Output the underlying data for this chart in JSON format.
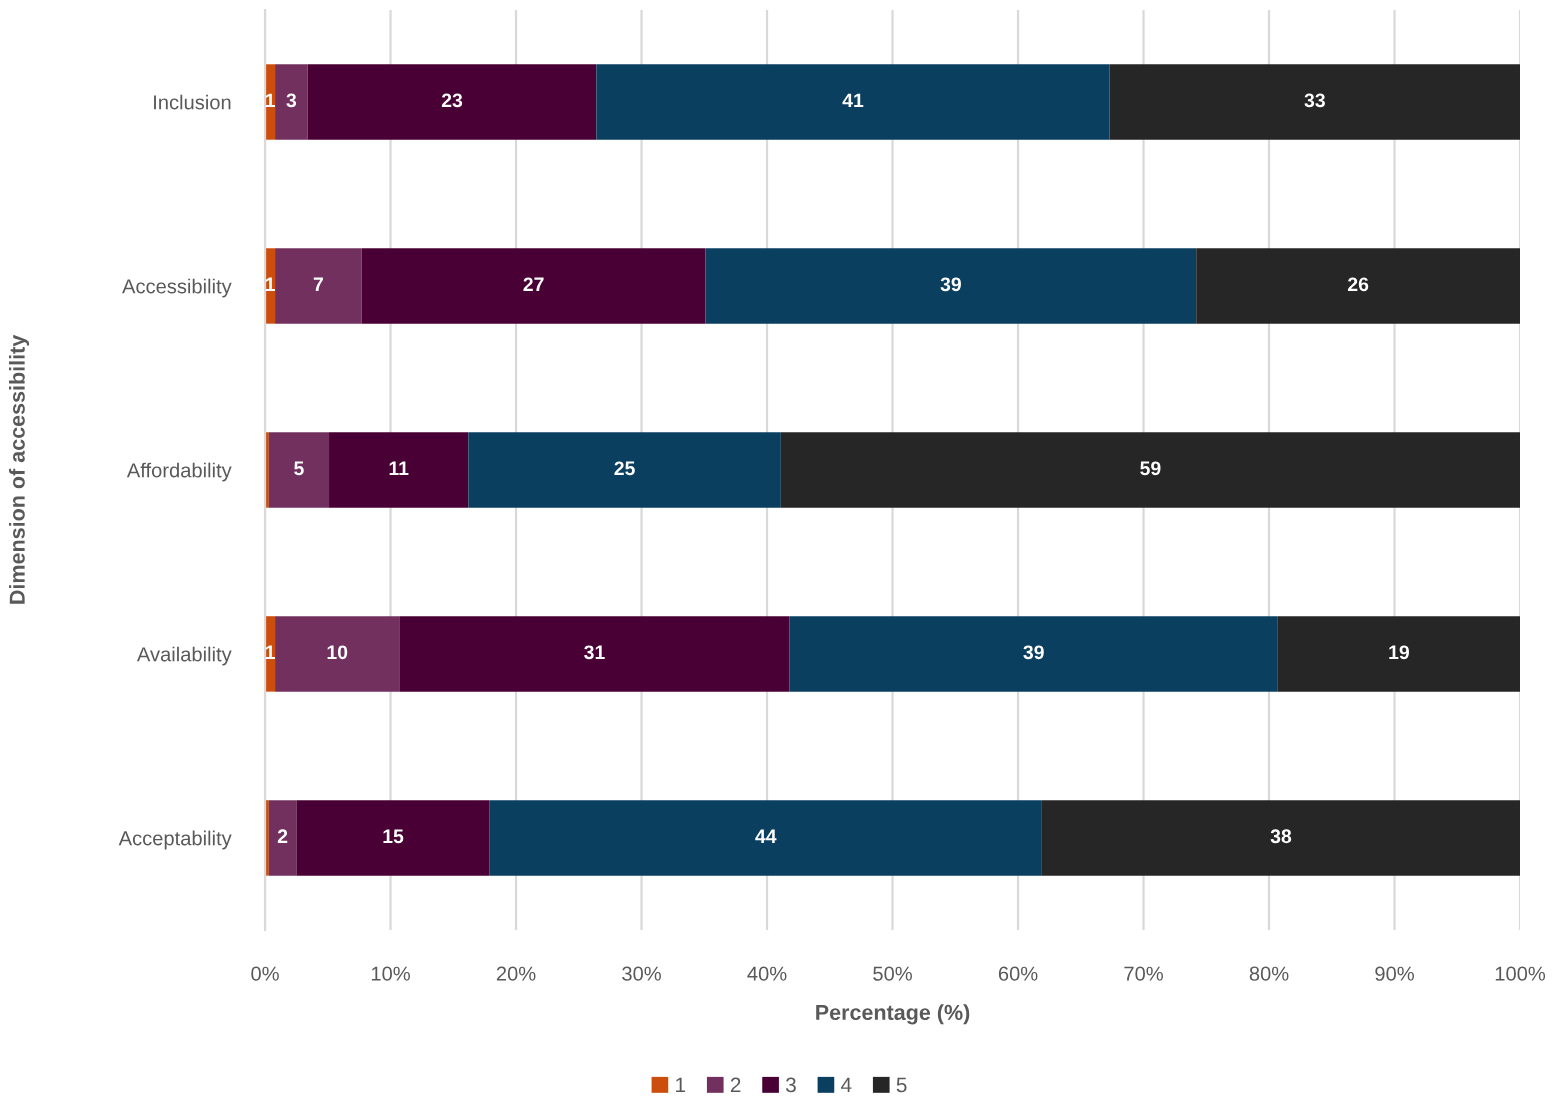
{
  "chart_data": {
    "type": "bar",
    "orientation": "horizontal",
    "stacked": true,
    "xlabel": "Percentage (%)",
    "ylabel": "Dimension of accessibility",
    "categories": [
      "Inclusion",
      "Accessibility",
      "Affordability",
      "Availability",
      "Acceptability"
    ],
    "series": [
      {
        "name": "1",
        "color": "#cc4e0c",
        "values": [
          0.8,
          0.8,
          0.3,
          0.8,
          0.3
        ],
        "value_labels": [
          "1",
          "1",
          null,
          "1",
          null
        ]
      },
      {
        "name": "2",
        "color": "#72305e",
        "values": [
          2.6,
          6.9,
          4.8,
          9.9,
          2.2
        ],
        "value_labels": [
          "3",
          "7",
          "5",
          "10",
          "2"
        ]
      },
      {
        "name": "3",
        "color": "#490034",
        "values": [
          23.0,
          27.4,
          11.1,
          31.1,
          15.4
        ],
        "value_labels": [
          "23",
          "27",
          "11",
          "31",
          "15"
        ]
      },
      {
        "name": "4",
        "color": "#0b3f60",
        "values": [
          40.9,
          39.1,
          24.9,
          38.9,
          44.0
        ],
        "value_labels": [
          "41",
          "39",
          "25",
          "39",
          "44"
        ]
      },
      {
        "name": "5",
        "color": "#262626",
        "values": [
          32.7,
          25.8,
          58.9,
          19.3,
          38.1
        ],
        "value_labels": [
          "33",
          "26",
          "59",
          "19",
          "38"
        ]
      }
    ],
    "xlim": [
      0,
      100
    ],
    "xticks": [
      {
        "value": 0,
        "label": "0%"
      },
      {
        "value": 10,
        "label": "10%"
      },
      {
        "value": 20,
        "label": "20%"
      },
      {
        "value": 30,
        "label": "30%"
      },
      {
        "value": 40,
        "label": "40%"
      },
      {
        "value": 50,
        "label": "50%"
      },
      {
        "value": 60,
        "label": "60%"
      },
      {
        "value": 70,
        "label": "70%"
      },
      {
        "value": 80,
        "label": "80%"
      },
      {
        "value": 90,
        "label": "90%"
      },
      {
        "value": 100,
        "label": "100%"
      }
    ],
    "grid": "x",
    "legend": "bottom"
  }
}
